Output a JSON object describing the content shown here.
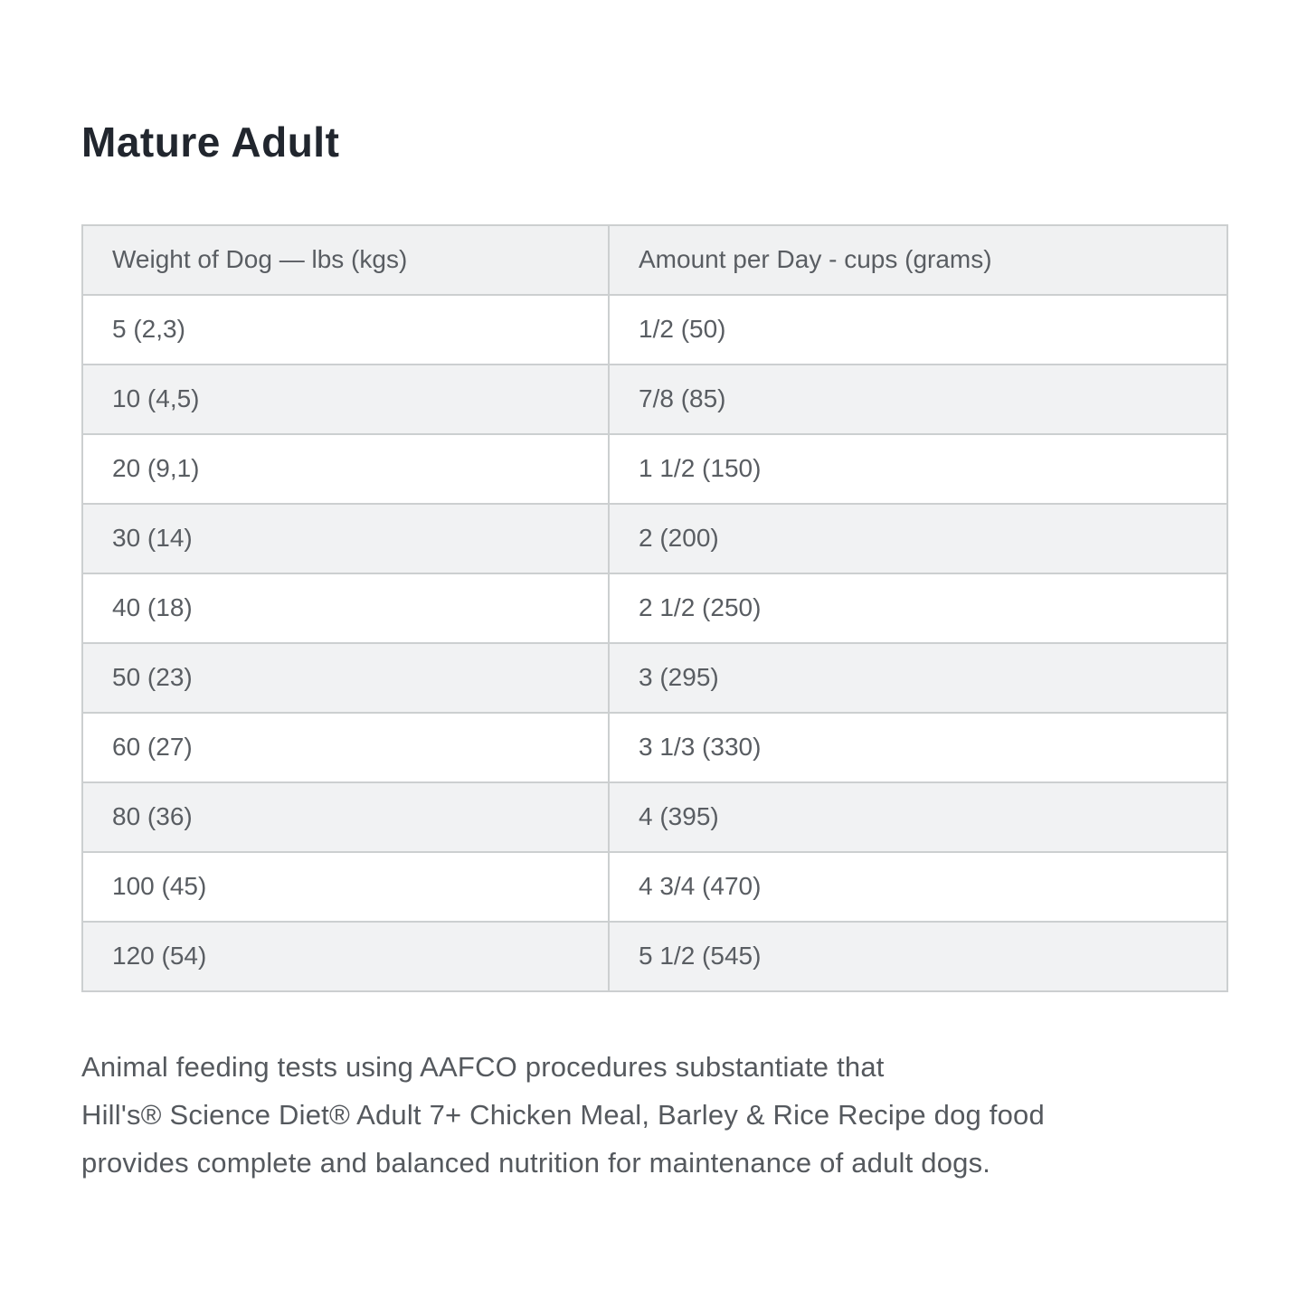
{
  "title": "Mature Adult",
  "table": {
    "columns": [
      "Weight of Dog — lbs (kgs)",
      "Amount per Day - cups (grams)"
    ],
    "rows": [
      {
        "weight": "5 (2,3)",
        "amount": "1/2 (50)"
      },
      {
        "weight": "10 (4,5)",
        "amount": "7/8 (85)"
      },
      {
        "weight": "20 (9,1)",
        "amount": "1 1/2 (150)"
      },
      {
        "weight": "30 (14)",
        "amount": "2 (200)"
      },
      {
        "weight": "40 (18)",
        "amount": "2 1/2 (250)"
      },
      {
        "weight": "50 (23)",
        "amount": "3 (295)"
      },
      {
        "weight": "60 (27)",
        "amount": "3 1/3 (330)"
      },
      {
        "weight": "80 (36)",
        "amount": "4 (395)"
      },
      {
        "weight": "100 (45)",
        "amount": "4 3/4 (470)"
      },
      {
        "weight": "120 (54)",
        "amount": "5 1/2 (545)"
      }
    ]
  },
  "footnote": {
    "lines": [
      "Animal feeding tests using AAFCO procedures substantiate that",
      "Hill's® Science Diet® Adult 7+ Chicken Meal, Barley & Rice Recipe dog food",
      "provides complete and balanced nutrition for maintenance of adult dogs."
    ]
  }
}
